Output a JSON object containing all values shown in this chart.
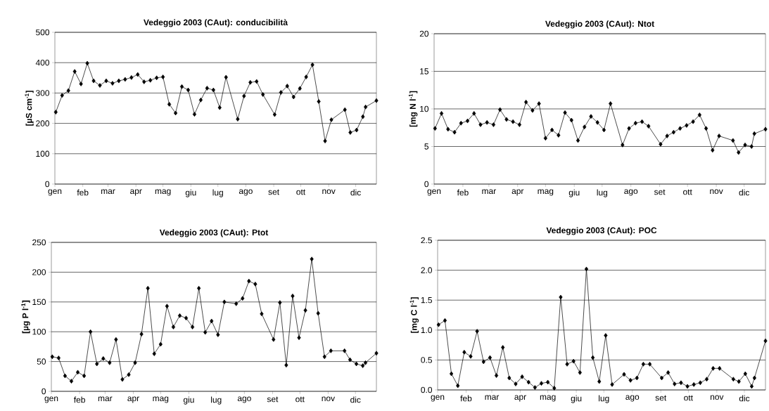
{
  "chart_data": [
    {
      "type": "line",
      "title": "Vedeggio 2003 (CAut): conducibilità",
      "ylabel": "[µS cm$^{-1}$]",
      "x": [
        "2003-01-02",
        "2003-01-09",
        "2003-01-16",
        "2003-01-23",
        "2003-01-30",
        "2003-02-06",
        "2003-02-13",
        "2003-02-20",
        "2003-02-27",
        "2003-03-06",
        "2003-03-13",
        "2003-03-20",
        "2003-03-27",
        "2003-04-03",
        "2003-04-10",
        "2003-04-17",
        "2003-04-24",
        "2003-05-01",
        "2003-05-08",
        "2003-05-15",
        "2003-05-22",
        "2003-05-29",
        "2003-06-05",
        "2003-06-12",
        "2003-06-19",
        "2003-06-26",
        "2003-07-03",
        "2003-07-10",
        "2003-07-23",
        "2003-07-30",
        "2003-08-06",
        "2003-08-13",
        "2003-08-20",
        "2003-09-02",
        "2003-09-09",
        "2003-09-16",
        "2003-09-23",
        "2003-09-30",
        "2003-10-07",
        "2003-10-14",
        "2003-10-21",
        "2003-10-28",
        "2003-11-04",
        "2003-11-19",
        "2003-11-25",
        "2003-12-02",
        "2003-12-09",
        "2003-12-12",
        "2003-12-24"
      ],
      "values": [
        237,
        292,
        308,
        371,
        330,
        398,
        340,
        325,
        340,
        332,
        340,
        345,
        351,
        361,
        337,
        342,
        350,
        353,
        263,
        234,
        321,
        310,
        230,
        277,
        316,
        310,
        252,
        352,
        214,
        290,
        335,
        338,
        295,
        229,
        302,
        323,
        287,
        315,
        353,
        393,
        272,
        142,
        212,
        245,
        170,
        178,
        222,
        254,
        275
      ],
      "color": "#000000",
      "marker": "diamond",
      "line_style": "solid",
      "grid": "y",
      "xlim": [
        "2003-01-01",
        "2003-12-24"
      ],
      "xticks": [
        {
          "value": "2003-01-01",
          "label": "gen"
        },
        {
          "value": "2003-02-01",
          "label": "feb"
        },
        {
          "value": "2003-03-01",
          "label": "mar"
        },
        {
          "value": "2003-04-01",
          "label": "apr"
        },
        {
          "value": "2003-05-01",
          "label": "mag"
        },
        {
          "value": "2003-06-01",
          "label": "giu"
        },
        {
          "value": "2003-07-01",
          "label": "lug"
        },
        {
          "value": "2003-08-01",
          "label": "ago"
        },
        {
          "value": "2003-09-01",
          "label": "set"
        },
        {
          "value": "2003-10-01",
          "label": "ott"
        },
        {
          "value": "2003-11-01",
          "label": "nov"
        },
        {
          "value": "2003-12-01",
          "label": "dic"
        }
      ],
      "ylim": [
        0,
        500
      ],
      "yticks": [
        0,
        100,
        200,
        300,
        400,
        500
      ]
    },
    {
      "type": "line",
      "title": "Vedeggio 2003 (CAut): Ntot",
      "ylabel": "[mg N l$^{-1}$]",
      "x": [
        "2003-01-02",
        "2003-01-09",
        "2003-01-16",
        "2003-01-23",
        "2003-01-30",
        "2003-02-06",
        "2003-02-13",
        "2003-02-20",
        "2003-02-27",
        "2003-03-06",
        "2003-03-13",
        "2003-03-20",
        "2003-03-27",
        "2003-04-03",
        "2003-04-10",
        "2003-04-17",
        "2003-04-24",
        "2003-05-01",
        "2003-05-08",
        "2003-05-15",
        "2003-05-22",
        "2003-05-29",
        "2003-06-05",
        "2003-06-12",
        "2003-06-19",
        "2003-06-26",
        "2003-07-03",
        "2003-07-10",
        "2003-07-23",
        "2003-07-30",
        "2003-08-06",
        "2003-08-13",
        "2003-08-20",
        "2003-09-02",
        "2003-09-09",
        "2003-09-16",
        "2003-09-23",
        "2003-09-30",
        "2003-10-07",
        "2003-10-14",
        "2003-10-21",
        "2003-10-28",
        "2003-11-04",
        "2003-11-19",
        "2003-11-25",
        "2003-12-02",
        "2003-12-09",
        "2003-12-12",
        "2003-12-24"
      ],
      "values": [
        7.4,
        9.4,
        7.3,
        6.9,
        8.1,
        8.4,
        9.4,
        7.9,
        8.2,
        7.9,
        9.9,
        8.6,
        8.3,
        7.9,
        10.9,
        9.8,
        10.7,
        6.1,
        7.2,
        6.5,
        9.5,
        8.5,
        5.8,
        7.6,
        9.0,
        8.2,
        7.2,
        10.7,
        5.2,
        7.4,
        8.1,
        8.3,
        7.7,
        5.3,
        6.4,
        6.9,
        7.4,
        7.8,
        8.3,
        9.2,
        7.4,
        4.5,
        6.4,
        5.8,
        4.2,
        5.2,
        5.0,
        6.7,
        7.3
      ],
      "color": "#000000",
      "marker": "diamond",
      "line_style": "solid",
      "grid": "y",
      "xlim": [
        "2003-01-01",
        "2003-12-24"
      ],
      "xticks": [
        {
          "value": "2003-01-01",
          "label": "gen"
        },
        {
          "value": "2003-02-01",
          "label": "feb"
        },
        {
          "value": "2003-03-01",
          "label": "mar"
        },
        {
          "value": "2003-04-01",
          "label": "apr"
        },
        {
          "value": "2003-05-01",
          "label": "mag"
        },
        {
          "value": "2003-06-01",
          "label": "giu"
        },
        {
          "value": "2003-07-01",
          "label": "lug"
        },
        {
          "value": "2003-08-01",
          "label": "ago"
        },
        {
          "value": "2003-09-01",
          "label": "set"
        },
        {
          "value": "2003-10-01",
          "label": "ott"
        },
        {
          "value": "2003-11-01",
          "label": "nov"
        },
        {
          "value": "2003-12-01",
          "label": "dic"
        }
      ],
      "ylim": [
        0,
        20
      ],
      "yticks": [
        0,
        5,
        10,
        15,
        20
      ]
    },
    {
      "type": "line",
      "title": "Vedeggio 2003 (CAut): Ptot",
      "ylabel": "[µg P l$^{-1}$]",
      "x": [
        "2003-01-02",
        "2003-01-09",
        "2003-01-16",
        "2003-01-23",
        "2003-01-30",
        "2003-02-06",
        "2003-02-13",
        "2003-02-20",
        "2003-02-27",
        "2003-03-06",
        "2003-03-13",
        "2003-03-20",
        "2003-03-27",
        "2003-04-03",
        "2003-04-10",
        "2003-04-17",
        "2003-04-24",
        "2003-05-01",
        "2003-05-08",
        "2003-05-15",
        "2003-05-22",
        "2003-05-29",
        "2003-06-05",
        "2003-06-12",
        "2003-06-19",
        "2003-06-26",
        "2003-07-03",
        "2003-07-10",
        "2003-07-23",
        "2003-07-30",
        "2003-08-06",
        "2003-08-13",
        "2003-08-20",
        "2003-09-02",
        "2003-09-09",
        "2003-09-16",
        "2003-09-23",
        "2003-09-30",
        "2003-10-07",
        "2003-10-14",
        "2003-10-21",
        "2003-10-28",
        "2003-11-04",
        "2003-11-19",
        "2003-11-25",
        "2003-12-02",
        "2003-12-09",
        "2003-12-12",
        "2003-12-24"
      ],
      "values": [
        58,
        56,
        26,
        17,
        32,
        26,
        100,
        46,
        55,
        48,
        87,
        20,
        28,
        48,
        96,
        173,
        63,
        79,
        143,
        108,
        127,
        123,
        108,
        173,
        99,
        118,
        95,
        150,
        147,
        156,
        185,
        180,
        130,
        87,
        149,
        44,
        160,
        90,
        136,
        222,
        131,
        58,
        68,
        68,
        53,
        46,
        43,
        48,
        64
      ],
      "color": "#000000",
      "marker": "diamond",
      "line_style": "solid",
      "grid": "y",
      "xlim": [
        "2003-01-01",
        "2003-12-24"
      ],
      "xticks": [
        {
          "value": "2003-01-01",
          "label": "gen"
        },
        {
          "value": "2003-02-01",
          "label": "feb"
        },
        {
          "value": "2003-03-01",
          "label": "mar"
        },
        {
          "value": "2003-04-01",
          "label": "apr"
        },
        {
          "value": "2003-05-01",
          "label": "mag"
        },
        {
          "value": "2003-06-01",
          "label": "giu"
        },
        {
          "value": "2003-07-01",
          "label": "lug"
        },
        {
          "value": "2003-08-01",
          "label": "ago"
        },
        {
          "value": "2003-09-01",
          "label": "set"
        },
        {
          "value": "2003-10-01",
          "label": "ott"
        },
        {
          "value": "2003-11-01",
          "label": "nov"
        },
        {
          "value": "2003-12-01",
          "label": "dic"
        }
      ],
      "ylim": [
        0,
        250
      ],
      "yticks": [
        0,
        50,
        100,
        150,
        200,
        250
      ]
    },
    {
      "type": "line",
      "title": "Vedeggio 2003 (CAut): POC",
      "ylabel": "[mg C l$^{-1}$]",
      "x": [
        "2003-01-02",
        "2003-01-09",
        "2003-01-16",
        "2003-01-23",
        "2003-01-30",
        "2003-02-06",
        "2003-02-13",
        "2003-02-20",
        "2003-02-27",
        "2003-03-06",
        "2003-03-13",
        "2003-03-20",
        "2003-03-27",
        "2003-04-03",
        "2003-04-10",
        "2003-04-17",
        "2003-04-24",
        "2003-05-01",
        "2003-05-08",
        "2003-05-15",
        "2003-05-22",
        "2003-05-29",
        "2003-06-05",
        "2003-06-12",
        "2003-06-19",
        "2003-06-26",
        "2003-07-03",
        "2003-07-10",
        "2003-07-23",
        "2003-07-30",
        "2003-08-06",
        "2003-08-13",
        "2003-08-20",
        "2003-09-02",
        "2003-09-09",
        "2003-09-16",
        "2003-09-23",
        "2003-09-30",
        "2003-10-07",
        "2003-10-14",
        "2003-10-21",
        "2003-10-28",
        "2003-11-04",
        "2003-11-19",
        "2003-11-25",
        "2003-12-02",
        "2003-12-09",
        "2003-12-12",
        "2003-12-24"
      ],
      "values": [
        1.09,
        1.16,
        0.27,
        0.07,
        0.63,
        0.56,
        0.98,
        0.47,
        0.54,
        0.24,
        0.71,
        0.2,
        0.1,
        0.22,
        0.13,
        0.04,
        0.11,
        0.13,
        0.03,
        1.55,
        0.43,
        0.48,
        0.29,
        2.02,
        0.54,
        0.14,
        0.91,
        0.09,
        0.26,
        0.16,
        0.2,
        0.43,
        0.43,
        0.2,
        0.29,
        0.1,
        0.12,
        0.06,
        0.09,
        0.12,
        0.18,
        0.36,
        0.36,
        0.18,
        0.14,
        0.27,
        0.06,
        0.2,
        0.82
      ],
      "color": "#000000",
      "marker": "diamond",
      "line_style": "solid",
      "grid": "y",
      "xlim": [
        "2003-01-01",
        "2003-12-24"
      ],
      "xticks": [
        {
          "value": "2003-01-01",
          "label": "gen"
        },
        {
          "value": "2003-02-01",
          "label": "feb"
        },
        {
          "value": "2003-03-01",
          "label": "mar"
        },
        {
          "value": "2003-04-01",
          "label": "apr"
        },
        {
          "value": "2003-05-01",
          "label": "mag"
        },
        {
          "value": "2003-06-01",
          "label": "giu"
        },
        {
          "value": "2003-07-01",
          "label": "lug"
        },
        {
          "value": "2003-08-01",
          "label": "ago"
        },
        {
          "value": "2003-09-01",
          "label": "set"
        },
        {
          "value": "2003-10-01",
          "label": "ott"
        },
        {
          "value": "2003-11-01",
          "label": "nov"
        },
        {
          "value": "2003-12-01",
          "label": "dic"
        }
      ],
      "ylim": [
        0,
        2.5
      ],
      "yticks": [
        {
          "value": 0,
          "label": "0.0"
        },
        {
          "value": 0.5,
          "label": "0.5"
        },
        {
          "value": 1.0,
          "label": "1.0"
        },
        {
          "value": 1.5,
          "label": "1.5"
        },
        {
          "value": 2.0,
          "label": "2.0"
        },
        {
          "value": 2.5,
          "label": "2.5"
        }
      ]
    }
  ]
}
